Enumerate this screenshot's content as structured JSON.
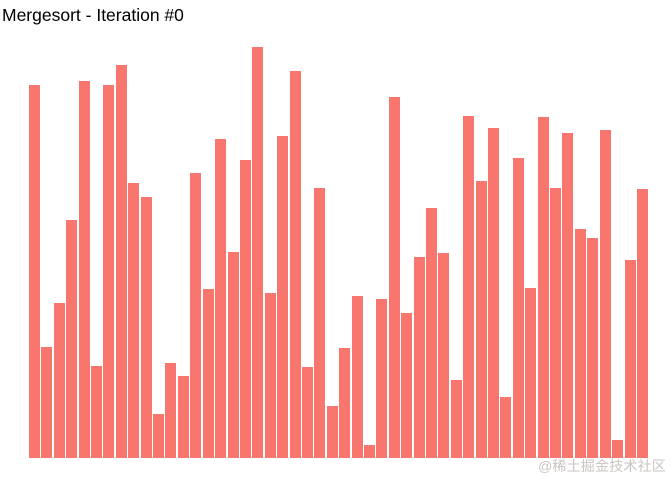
{
  "title": "Mergesort - Iteration #0",
  "watermark": "@稀土掘金技术社区",
  "chart_data": {
    "type": "bar",
    "title": "Mergesort - Iteration #0",
    "xlabel": "",
    "ylabel": "",
    "axes_shown": false,
    "grid": false,
    "legend": false,
    "bar_color": "#F8766D",
    "background_color": "#ffffff",
    "bar_count": 50,
    "y_unit": "pixels (chart has no axis labels; values are bar heights in px)",
    "ylim": [
      0,
      420
    ],
    "values": [
      373,
      111,
      155,
      238,
      377,
      92,
      373,
      393,
      275,
      261,
      44,
      95,
      82,
      285,
      169,
      319,
      206,
      298,
      411,
      165,
      322,
      387,
      91,
      270,
      52,
      110,
      162,
      13,
      159,
      361,
      145,
      201,
      250,
      205,
      78,
      342,
      277,
      330,
      61,
      300,
      170,
      341,
      270,
      325,
      229,
      220,
      328,
      18,
      198,
      269
    ]
  }
}
